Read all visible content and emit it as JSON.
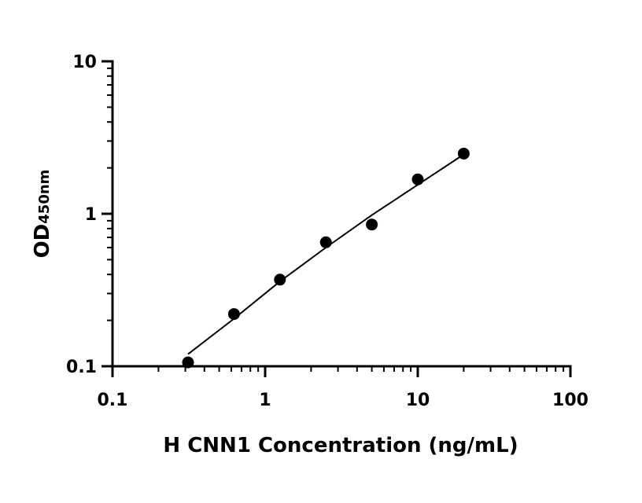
{
  "chart_data": {
    "type": "scatter",
    "x_scale": "log",
    "y_scale": "log",
    "xlim": [
      0.1,
      100
    ],
    "ylim": [
      0.1,
      10
    ],
    "x_ticks": [
      0.1,
      1,
      10,
      100
    ],
    "y_ticks": [
      0.1,
      1,
      10
    ],
    "x_tick_labels": [
      "0.1",
      "1",
      "10",
      "100"
    ],
    "y_tick_labels": [
      "0.1",
      "1",
      "10"
    ],
    "xlabel": "H CNN1 Concentration (ng/mL)",
    "ylabel_main": "OD",
    "ylabel_sub": "450nm",
    "grid": false,
    "legend": "none",
    "marker_color": "#000000",
    "series": [
      {
        "x": [
          0.3125,
          0.625,
          1.25,
          2.5,
          5,
          10,
          20
        ],
        "y": [
          0.106,
          0.22,
          0.37,
          0.65,
          0.85,
          1.68,
          2.48
        ]
      }
    ],
    "fit_line": {
      "x": [
        0.3125,
        0.625,
        1.25,
        2.5,
        5,
        10,
        20
      ],
      "y": [
        0.12,
        0.205,
        0.36,
        0.6,
        0.98,
        1.55,
        2.45
      ]
    }
  }
}
